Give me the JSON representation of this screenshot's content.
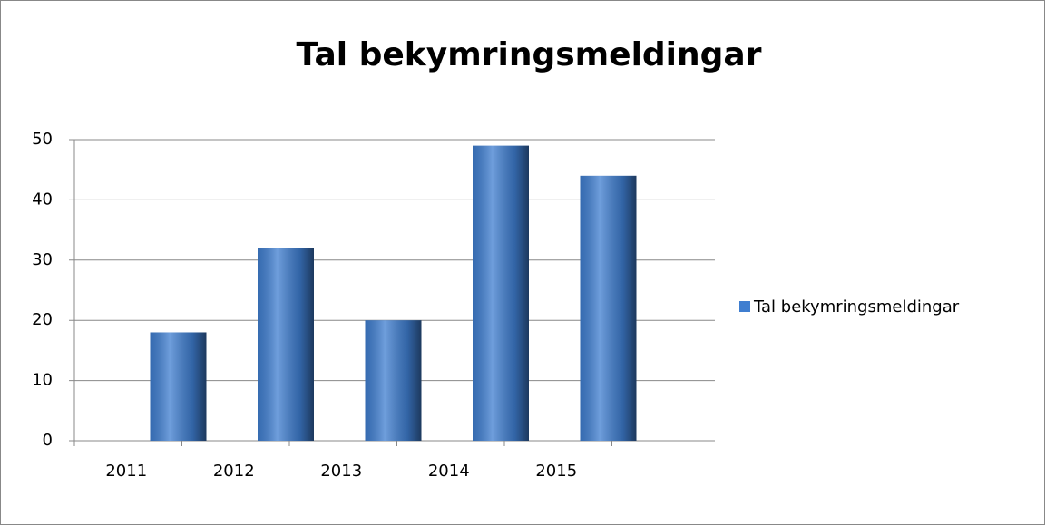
{
  "chart_data": {
    "type": "bar",
    "title": "Tal bekymringsmeldingar",
    "categories": [
      "2011",
      "2012",
      "2013",
      "2014",
      "2015"
    ],
    "series": [
      {
        "name": "Tal bekymringsmeldingar",
        "color": "#3f7ed0",
        "values": [
          18,
          32,
          20,
          49,
          44
        ]
      }
    ],
    "ylim": [
      0,
      50
    ],
    "yticks": [
      0,
      10,
      20,
      30,
      40,
      50
    ],
    "grid": true,
    "legend": "right"
  }
}
